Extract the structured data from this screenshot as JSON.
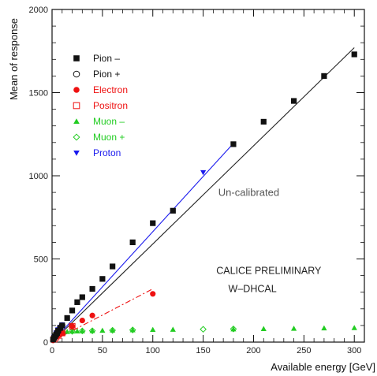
{
  "chart_data": {
    "type": "scatter",
    "xlabel": "Available energy [GeV]",
    "ylabel": "Mean of response",
    "xlim": [
      0,
      310
    ],
    "ylim": [
      0,
      2000
    ],
    "xticks": [
      0,
      50,
      100,
      150,
      200,
      250,
      300
    ],
    "yticks": [
      0,
      500,
      1000,
      1500,
      2000
    ],
    "xtick_labels": [
      "0",
      "50",
      "100",
      "150",
      "200",
      "250",
      "300"
    ],
    "ytick_labels": [
      "0",
      "500",
      "1000",
      "1500",
      "2000"
    ],
    "grid": false,
    "legend_position": "top-left",
    "annotations": [
      {
        "text": "Un-calibrated",
        "x": 165,
        "y": 880,
        "color": "#555555"
      },
      {
        "text": "CALICE PRELIMINARY",
        "x": 163,
        "y": 410,
        "color": "#222222"
      },
      {
        "text": "W–DHCAL",
        "x": 175,
        "y": 300,
        "color": "#222222"
      }
    ],
    "series": [
      {
        "name": "Pion –",
        "marker": "square-filled",
        "color": "#111111",
        "x": [
          1,
          2,
          3,
          4,
          5,
          6,
          8,
          10,
          15,
          20,
          25,
          30,
          40,
          50,
          60,
          80,
          100,
          120,
          180,
          210,
          240,
          270,
          300
        ],
        "y": [
          15,
          25,
          35,
          45,
          55,
          68,
          85,
          100,
          145,
          190,
          240,
          270,
          320,
          380,
          455,
          600,
          715,
          790,
          1190,
          1325,
          1450,
          1600,
          1730
        ]
      },
      {
        "name": "Pion +",
        "marker": "circle-open",
        "color": "#111111",
        "x": [
          2,
          4,
          6,
          8,
          10
        ],
        "y": [
          25,
          45,
          65,
          85,
          100
        ]
      },
      {
        "name": "Electron",
        "marker": "circle-filled",
        "color": "#ee1111",
        "x": [
          1,
          2,
          3,
          5,
          8,
          10,
          20,
          30,
          40,
          100
        ],
        "y": [
          10,
          20,
          28,
          35,
          45,
          55,
          95,
          130,
          160,
          290
        ]
      },
      {
        "name": "Positron",
        "marker": "square-open",
        "color": "#ee1111",
        "x": [
          2,
          4,
          6,
          10,
          20
        ],
        "y": [
          18,
          30,
          40,
          55,
          95
        ]
      },
      {
        "name": "Muon –",
        "marker": "triangle-up-filled",
        "color": "#22cc22",
        "x": [
          4,
          6,
          8,
          10,
          15,
          20,
          25,
          30,
          40,
          50,
          60,
          80,
          100,
          120,
          180,
          210,
          240,
          270,
          300
        ],
        "y": [
          50,
          55,
          60,
          62,
          63,
          65,
          66,
          67,
          68,
          70,
          72,
          73,
          75,
          76,
          78,
          80,
          82,
          84,
          86
        ]
      },
      {
        "name": "Muon +",
        "marker": "diamond-open",
        "color": "#22cc22",
        "x": [
          6,
          10,
          20,
          30,
          40,
          60,
          80,
          150,
          180
        ],
        "y": [
          58,
          62,
          65,
          67,
          68,
          71,
          73,
          77,
          79
        ]
      },
      {
        "name": "Proton",
        "marker": "triangle-down-filled",
        "color": "#1a1aee",
        "x": [
          2,
          4,
          6,
          8,
          10,
          150,
          180
        ],
        "y": [
          30,
          55,
          75,
          90,
          105,
          1020,
          1190
        ]
      }
    ],
    "fit_lines": [
      {
        "series": "Pion –",
        "color": "#222222",
        "style": "solid",
        "from": [
          0,
          0
        ],
        "to": [
          300,
          1770
        ]
      },
      {
        "series": "Proton",
        "color": "#1a1aee",
        "style": "solid",
        "from": [
          0,
          0
        ],
        "to": [
          180,
          1195
        ]
      },
      {
        "series": "Electron",
        "color": "#ee1111",
        "style": "dashdot",
        "from": [
          0,
          5
        ],
        "to": [
          100,
          320
        ]
      }
    ]
  }
}
